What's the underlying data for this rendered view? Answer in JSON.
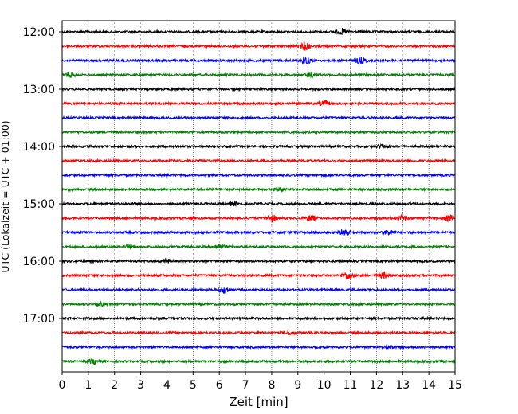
{
  "chart_data": {
    "type": "line",
    "title": "",
    "xlabel": "Zeit  [min]",
    "ylabel": "UTC (Lokalzeit = UTC + 01:00)",
    "xlim": [
      0,
      15
    ],
    "x_ticks": [
      0,
      1,
      2,
      3,
      4,
      5,
      6,
      7,
      8,
      9,
      10,
      11,
      12,
      13,
      14,
      15
    ],
    "x_tick_labels": [
      "0",
      "1",
      "2",
      "3",
      "4",
      "5",
      "6",
      "7",
      "8",
      "9",
      "10",
      "11",
      "12",
      "13",
      "14",
      "15"
    ],
    "y_tick_labels": [
      "12:00",
      "13:00",
      "14:00",
      "15:00",
      "16:00",
      "17:00"
    ],
    "trace_interval_minutes": 15,
    "first_trace": "12:00",
    "trace_count": 24,
    "grid": "vertical dotted",
    "colors": [
      "#000000",
      "#ff0000",
      "#0000ff",
      "#008000"
    ],
    "traces": [
      {
        "start": "12:00",
        "events": [
          {
            "t": 10.7,
            "amp": 2.0
          }
        ]
      },
      {
        "start": "12:15",
        "events": [
          {
            "t": 9.3,
            "amp": 2.8
          }
        ]
      },
      {
        "start": "12:30",
        "events": [
          {
            "t": 9.3,
            "amp": 2.5
          },
          {
            "t": 11.4,
            "amp": 2.3
          }
        ]
      },
      {
        "start": "12:45",
        "events": [
          {
            "t": 0.3,
            "amp": 1.8
          },
          {
            "t": 9.5,
            "amp": 1.6
          }
        ]
      },
      {
        "start": "13:00",
        "events": []
      },
      {
        "start": "13:15",
        "events": [
          {
            "t": 10.0,
            "amp": 1.8
          }
        ]
      },
      {
        "start": "13:30",
        "events": []
      },
      {
        "start": "13:45",
        "events": []
      },
      {
        "start": "14:00",
        "events": [
          {
            "t": 12.2,
            "amp": 1.3
          }
        ]
      },
      {
        "start": "14:15",
        "events": []
      },
      {
        "start": "14:30",
        "events": []
      },
      {
        "start": "14:45",
        "events": [
          {
            "t": 8.3,
            "amp": 1.3
          }
        ]
      },
      {
        "start": "15:00",
        "events": [
          {
            "t": 6.5,
            "amp": 1.3
          }
        ]
      },
      {
        "start": "15:15",
        "events": [
          {
            "t": 8.0,
            "amp": 2.3
          },
          {
            "t": 9.5,
            "amp": 2.0
          },
          {
            "t": 13.0,
            "amp": 1.8
          },
          {
            "t": 14.8,
            "amp": 2.0
          }
        ]
      },
      {
        "start": "15:30",
        "events": [
          {
            "t": 10.8,
            "amp": 3.0
          },
          {
            "t": 12.5,
            "amp": 1.9
          }
        ]
      },
      {
        "start": "15:45",
        "events": [
          {
            "t": 6.0,
            "amp": 2.0
          },
          {
            "t": 2.6,
            "amp": 1.4
          }
        ]
      },
      {
        "start": "16:00",
        "events": [
          {
            "t": 4.0,
            "amp": 1.3
          }
        ]
      },
      {
        "start": "16:15",
        "events": [
          {
            "t": 10.9,
            "amp": 2.8
          },
          {
            "t": 12.3,
            "amp": 2.0
          }
        ]
      },
      {
        "start": "16:30",
        "events": [
          {
            "t": 6.2,
            "amp": 2.3
          }
        ]
      },
      {
        "start": "16:45",
        "events": [
          {
            "t": 1.5,
            "amp": 1.3
          }
        ]
      },
      {
        "start": "17:00",
        "events": []
      },
      {
        "start": "17:15",
        "events": [
          {
            "t": 8.7,
            "amp": 1.3
          }
        ]
      },
      {
        "start": "17:30",
        "events": [
          {
            "t": 12.5,
            "amp": 1.3
          }
        ]
      },
      {
        "start": "17:45",
        "events": [
          {
            "t": 1.2,
            "amp": 1.9
          }
        ]
      }
    ]
  }
}
